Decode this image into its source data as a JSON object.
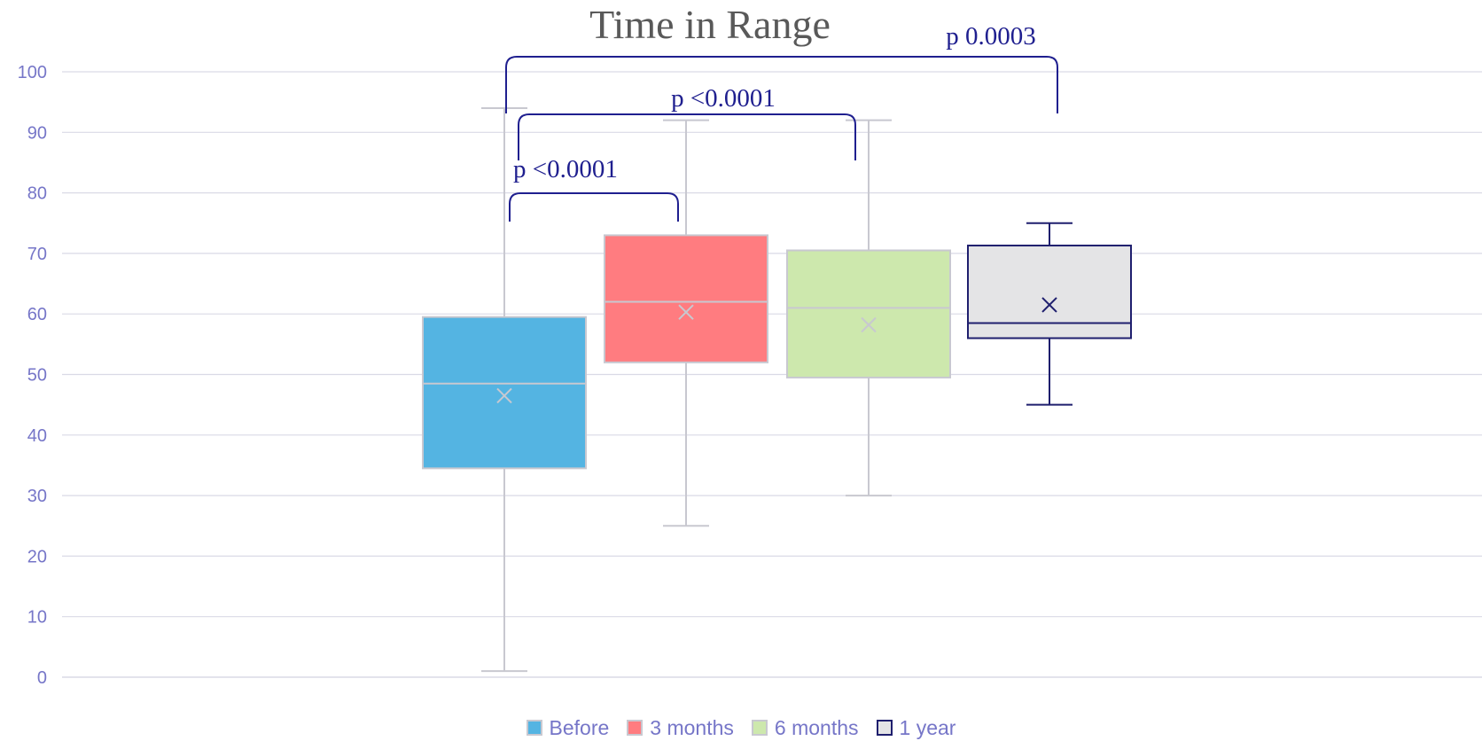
{
  "chart_data": {
    "type": "box",
    "title": "Time in Range",
    "ylim": [
      0,
      100
    ],
    "yticks": [
      "0",
      "10",
      "20",
      "30",
      "40",
      "50",
      "60",
      "70",
      "80",
      "90",
      "100"
    ],
    "grid": true,
    "legend_position": "bottom",
    "series": [
      {
        "name": "Before",
        "min": 1,
        "q1": 34.5,
        "median": 48.5,
        "mean": 46.5,
        "q3": 59.5,
        "max": 94,
        "color": "#54b4e2",
        "edge": "#c8c8d0"
      },
      {
        "name": "3 months",
        "min": 25,
        "q1": 52,
        "median": 62,
        "mean": 60.3,
        "q3": 73,
        "max": 92,
        "color": "#ff7c80",
        "edge": "#c8c8d0"
      },
      {
        "name": "6 months",
        "min": 30,
        "q1": 49.5,
        "median": 61,
        "mean": 58.2,
        "q3": 70.5,
        "max": 92,
        "color": "#cde8ad",
        "edge": "#c8c8d0"
      },
      {
        "name": "1 year",
        "min": 45,
        "q1": 56,
        "median": 58.5,
        "mean": 61.5,
        "q3": 71.3,
        "max": 75,
        "color": "#e4e4e6",
        "edge": "#1f1f6e"
      }
    ],
    "annotations": [
      {
        "text": "p <0.0001",
        "from": "Before",
        "to": "3 months"
      },
      {
        "text": "p <0.0001",
        "from": "Before",
        "to": "6 months"
      },
      {
        "text": "p 0.0003",
        "from": "Before",
        "to": "1 year"
      }
    ]
  }
}
